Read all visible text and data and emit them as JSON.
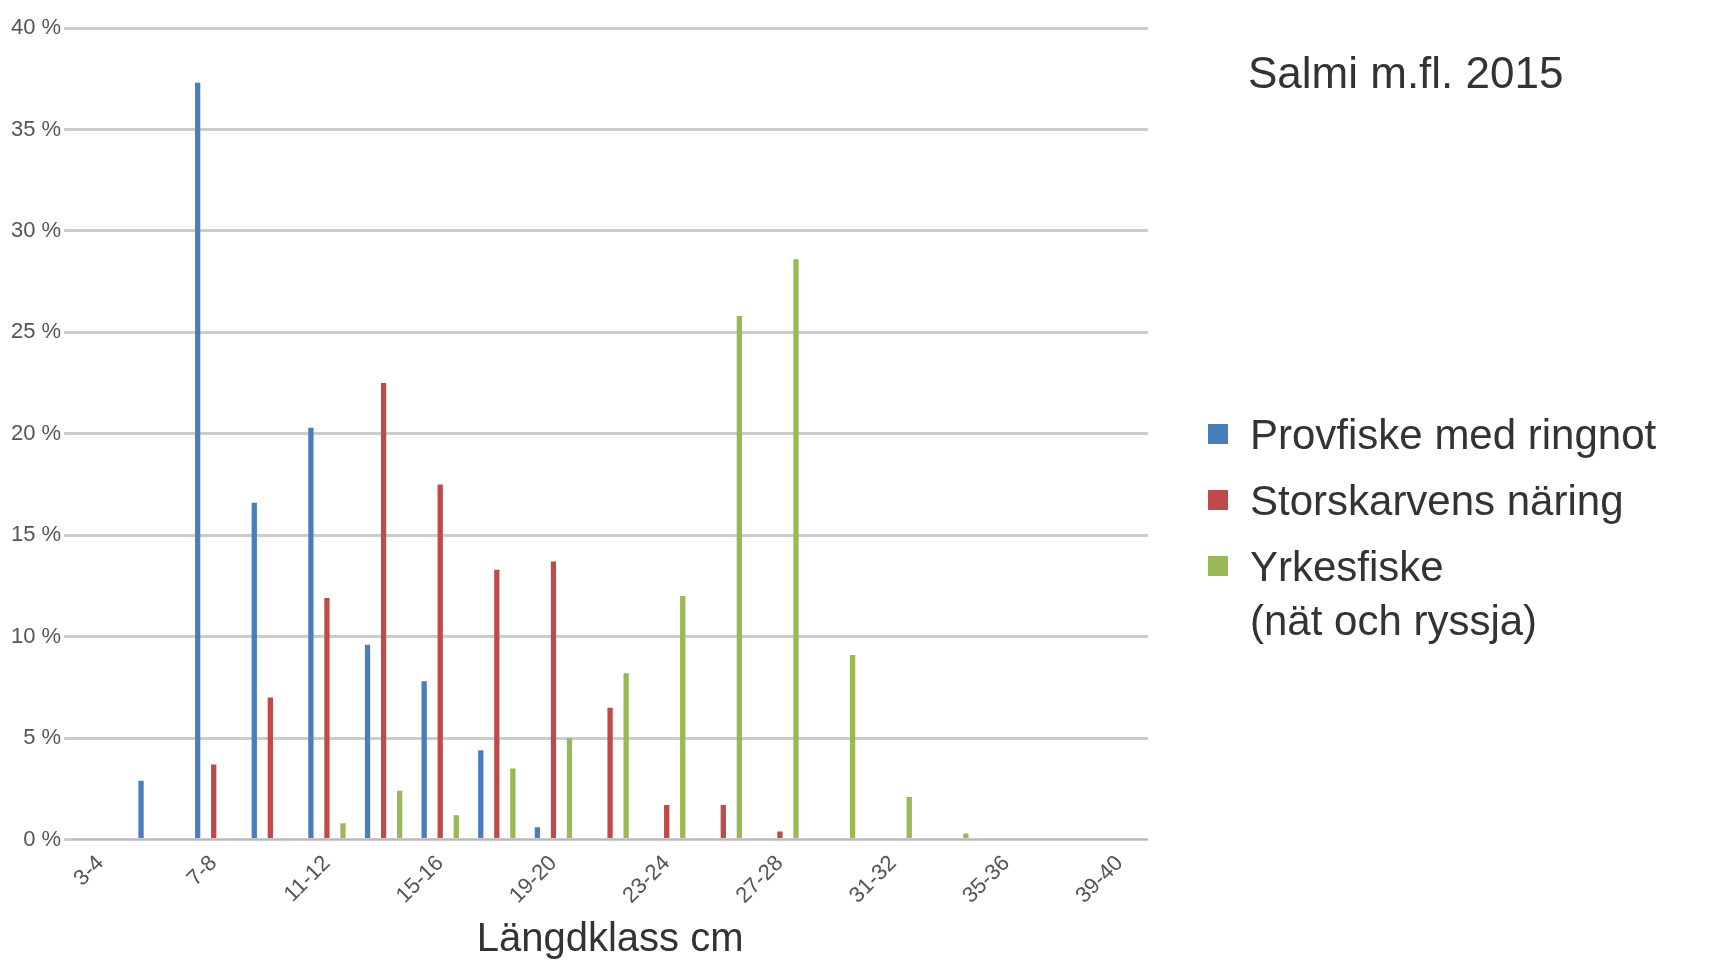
{
  "chart_data": {
    "type": "bar",
    "xlabel": "Längdklass cm",
    "annotations": [
      "Salmi m.fl. 2015"
    ],
    "categories": [
      "3-4",
      null,
      "7-8",
      null,
      "11-12",
      null,
      "15-16",
      null,
      "19-20",
      null,
      "23-24",
      null,
      "27-28",
      null,
      "31-32",
      null,
      "35-36",
      null,
      "39-40"
    ],
    "series": [
      {
        "name": "Provfiske med ringnot",
        "color": "#4a7ebb",
        "values": [
          0,
          2.9,
          37.3,
          16.6,
          20.3,
          9.6,
          7.8,
          4.4,
          0.6,
          null,
          0,
          0,
          0,
          0,
          0,
          0,
          0,
          0,
          0
        ]
      },
      {
        "name": "Storskarvens näring",
        "color": "#be4b48",
        "values": [
          0,
          0,
          3.7,
          7.0,
          11.9,
          22.5,
          17.5,
          13.3,
          13.7,
          6.5,
          1.7,
          1.7,
          0.4,
          0,
          0,
          0,
          0,
          0,
          0
        ]
      },
      {
        "name": "Yrkesfiske\n(nät och ryssja)",
        "color": "#98b954",
        "values": [
          0,
          0,
          0,
          0,
          0.8,
          2.4,
          1.2,
          3.5,
          5.0,
          8.2,
          12.0,
          25.8,
          28.6,
          9.1,
          2.1,
          0.3,
          0,
          null,
          null
        ]
      }
    ],
    "ylim": [
      0,
      40
    ],
    "yticks": [
      {
        "value": 0,
        "label": "0 %"
      },
      {
        "value": 5,
        "label": "5 %"
      },
      {
        "value": 10,
        "label": "10 %"
      },
      {
        "value": 15,
        "label": "15 %"
      },
      {
        "value": 20,
        "label": "20 %"
      },
      {
        "value": 25,
        "label": "25 %"
      },
      {
        "value": 30,
        "label": "30 %"
      },
      {
        "value": 35,
        "label": "35 %"
      },
      {
        "value": 40,
        "label": "40 %"
      }
    ],
    "grid": "y",
    "legend": "right"
  }
}
